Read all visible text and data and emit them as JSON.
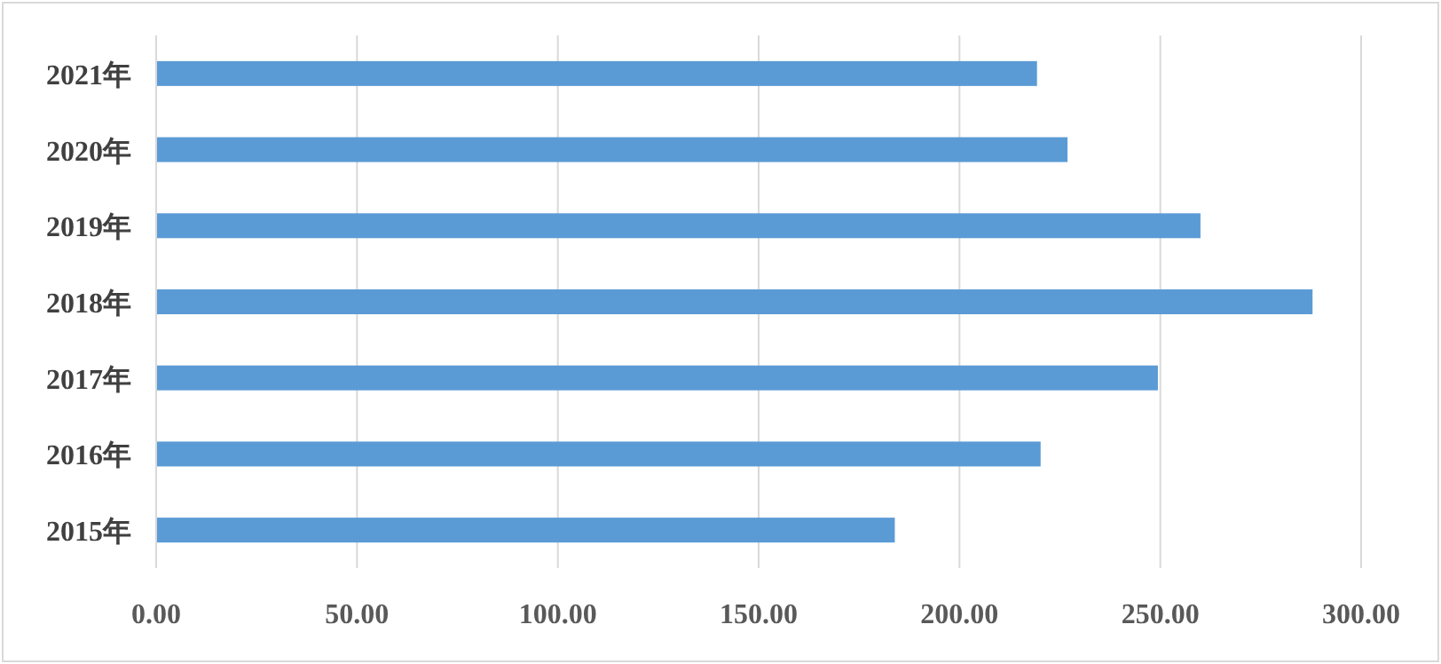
{
  "chart_data": {
    "type": "bar",
    "orientation": "horizontal",
    "categories": [
      "2021年",
      "2020年",
      "2019年",
      "2018年",
      "2017年",
      "2016年",
      "2015年"
    ],
    "values": [
      219.3,
      226.9,
      260.0,
      287.9,
      249.4,
      220.2,
      183.9
    ],
    "color": "#5b9bd5",
    "xlim": [
      0,
      300
    ],
    "xticks": [
      {
        "value": 0,
        "label": "0.00"
      },
      {
        "value": 50,
        "label": "50.00"
      },
      {
        "value": 100,
        "label": "100.00"
      },
      {
        "value": 150,
        "label": "150.00"
      },
      {
        "value": 200,
        "label": "200.00"
      },
      {
        "value": 250,
        "label": "250.00"
      },
      {
        "value": 300,
        "label": "300.00"
      }
    ],
    "grid": "x"
  }
}
